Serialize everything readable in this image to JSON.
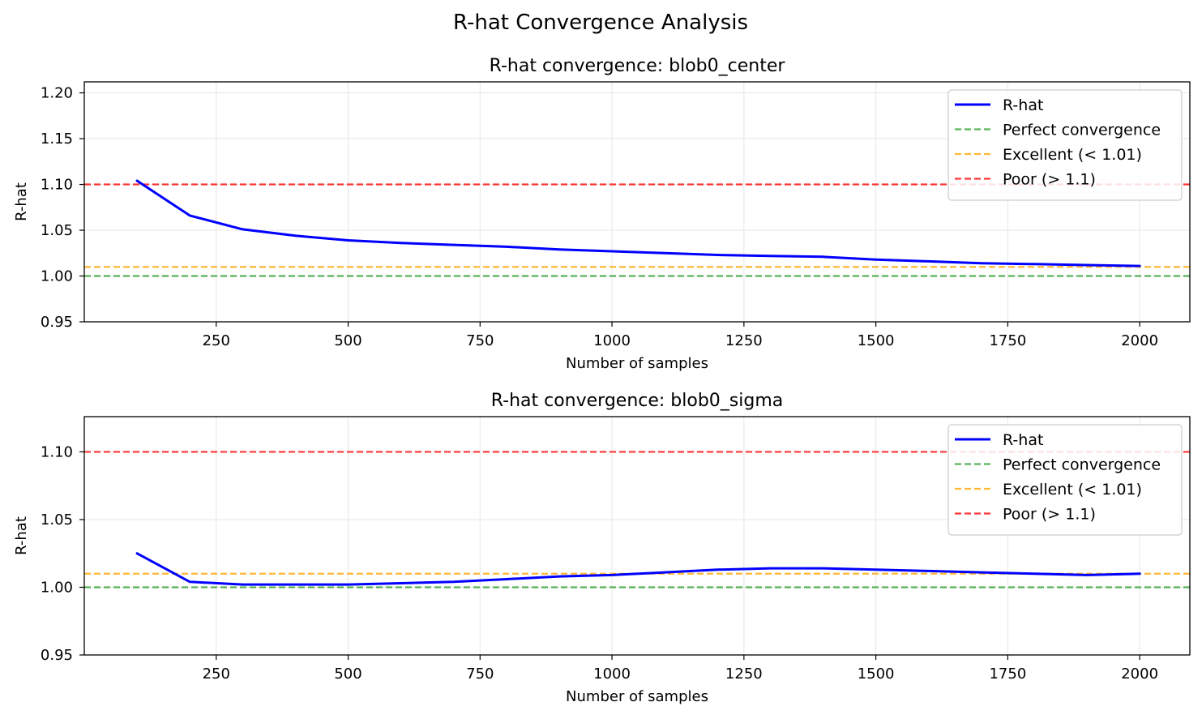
{
  "figure": {
    "title": "R-hat Convergence Analysis"
  },
  "chart_data": [
    {
      "type": "line",
      "title": "R-hat convergence: blob0_center",
      "xlabel": "Number of samples",
      "ylabel": "R-hat",
      "xlim": [
        0,
        2095
      ],
      "ylim": [
        0.95,
        1.212
      ],
      "x_ticks": [
        250,
        500,
        750,
        1000,
        1250,
        1500,
        1750,
        2000
      ],
      "y_ticks": [
        0.95,
        1.0,
        1.05,
        1.1,
        1.15,
        1.2
      ],
      "y_tick_labels": [
        "0.95",
        "1.00",
        "1.05",
        "1.10",
        "1.15",
        "1.20"
      ],
      "grid": true,
      "legend_position": "top-right",
      "series": [
        {
          "name": "R-hat",
          "color": "#0000ff",
          "style": "solid",
          "x": [
            100,
            200,
            300,
            400,
            500,
            600,
            700,
            800,
            900,
            1000,
            1100,
            1200,
            1300,
            1400,
            1500,
            1600,
            1700,
            1800,
            1900,
            2000
          ],
          "y": [
            1.104,
            1.066,
            1.051,
            1.044,
            1.039,
            1.036,
            1.034,
            1.032,
            1.029,
            1.027,
            1.025,
            1.023,
            1.022,
            1.021,
            1.018,
            1.016,
            1.014,
            1.013,
            1.012,
            1.011
          ]
        }
      ],
      "reference_lines": [
        {
          "name": "Perfect convergence",
          "y": 1.0,
          "color": "#2ca02c"
        },
        {
          "name": "Excellent (< 1.01)",
          "y": 1.01,
          "color": "#ffa500"
        },
        {
          "name": "Poor (> 1.1)",
          "y": 1.1,
          "color": "#ff0000"
        }
      ]
    },
    {
      "type": "line",
      "title": "R-hat convergence: blob0_sigma",
      "xlabel": "Number of samples",
      "ylabel": "R-hat",
      "xlim": [
        0,
        2095
      ],
      "ylim": [
        0.95,
        1.126
      ],
      "x_ticks": [
        250,
        500,
        750,
        1000,
        1250,
        1500,
        1750,
        2000
      ],
      "y_ticks": [
        0.95,
        1.0,
        1.05,
        1.1
      ],
      "y_tick_labels": [
        "0.95",
        "1.00",
        "1.05",
        "1.10"
      ],
      "grid": true,
      "legend_position": "top-right",
      "series": [
        {
          "name": "R-hat",
          "color": "#0000ff",
          "style": "solid",
          "x": [
            100,
            200,
            300,
            400,
            500,
            600,
            700,
            800,
            900,
            1000,
            1100,
            1200,
            1300,
            1400,
            1500,
            1600,
            1700,
            1800,
            1900,
            2000
          ],
          "y": [
            1.025,
            1.004,
            1.002,
            1.002,
            1.002,
            1.003,
            1.004,
            1.006,
            1.008,
            1.009,
            1.011,
            1.013,
            1.014,
            1.014,
            1.013,
            1.012,
            1.011,
            1.01,
            1.009,
            1.01
          ]
        }
      ],
      "reference_lines": [
        {
          "name": "Perfect convergence",
          "y": 1.0,
          "color": "#2ca02c"
        },
        {
          "name": "Excellent (< 1.01)",
          "y": 1.01,
          "color": "#ffa500"
        },
        {
          "name": "Poor (> 1.1)",
          "y": 1.1,
          "color": "#ff0000"
        }
      ]
    }
  ]
}
